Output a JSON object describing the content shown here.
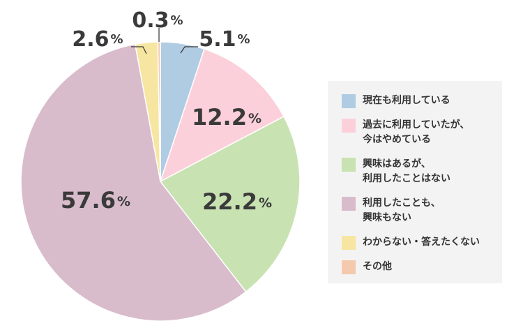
{
  "chart_data": {
    "type": "pie",
    "categories": [
      "現在も利用している",
      "過去に利用していたが、今はやめている",
      "興味はあるが、利用したことはない",
      "利用したことも、興味もない",
      "わからない・答えたくない",
      "その他"
    ],
    "values": [
      5.1,
      12.2,
      22.2,
      57.6,
      2.6,
      0.3
    ],
    "value_labels": [
      "5.1",
      "12.2",
      "22.2",
      "57.6",
      "2.6",
      "0.3"
    ],
    "unit": "%",
    "colors": [
      "#b0cce3",
      "#fcd0da",
      "#c8e2b2",
      "#d9bccc",
      "#f7e6a1",
      "#f5c9ad"
    ],
    "legend_placement": "right",
    "title": "",
    "legend": [
      {
        "lines": [
          "現在も利用している"
        ],
        "color": "#b0cce3"
      },
      {
        "lines": [
          "過去に利用していたが、",
          "今はやめている"
        ],
        "color": "#fcd0da"
      },
      {
        "lines": [
          "興味はあるが、",
          "利用したことはない"
        ],
        "color": "#c8e2b2"
      },
      {
        "lines": [
          "利用したことも、",
          "興味もない"
        ],
        "color": "#d9bccc"
      },
      {
        "lines": [
          "わからない・答えたくない"
        ],
        "color": "#f7e6a1"
      },
      {
        "lines": [
          "その他"
        ],
        "color": "#f5c9ad"
      }
    ]
  }
}
